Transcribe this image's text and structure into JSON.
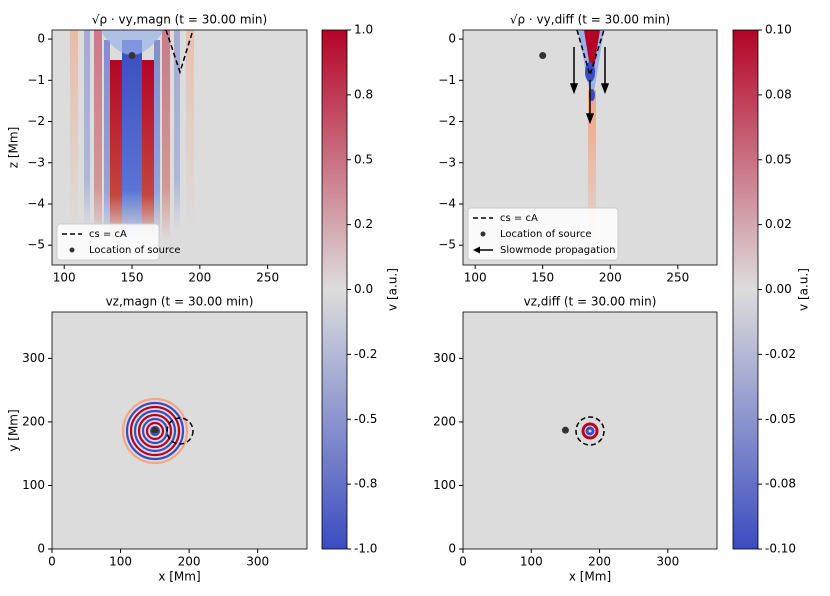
{
  "chart_data": [
    {
      "type": "heatmap",
      "title": "√ρ · vy,magn (t = 30.00 min)",
      "ylabel": "z [Mm]",
      "xlim": [
        91,
        279
      ],
      "ylim": [
        -5.48,
        0.22
      ],
      "xticks": [
        100,
        150,
        200,
        250
      ],
      "yticks": [
        {
          "value": -5,
          "label": "−5"
        },
        {
          "value": -4,
          "label": "−4"
        },
        {
          "value": -3,
          "label": "−3"
        },
        {
          "value": -2,
          "label": "−2"
        },
        {
          "value": -1,
          "label": "−1"
        },
        0
      ],
      "contour": {
        "name": "cs = cA"
      },
      "series": [
        {
          "name": "Location of source",
          "color": "#333333",
          "x": [
            150
          ],
          "y": [
            -0.4
          ]
        }
      ],
      "legend": "lower left"
    },
    {
      "type": "heatmap",
      "title": "√ρ · vy,diff (t = 30.00 min)",
      "xlim": [
        91,
        279
      ],
      "ylim": [
        -5.48,
        0.22
      ],
      "xticks": [
        100,
        150,
        200,
        250
      ],
      "yticks": [
        {
          "value": -5,
          "label": "−5"
        },
        {
          "value": -4,
          "label": "−4"
        },
        {
          "value": -3,
          "label": "−3"
        },
        {
          "value": -2,
          "label": "−2"
        },
        {
          "value": -1,
          "label": "−1"
        },
        0
      ],
      "contour": {
        "name": "cs = cA"
      },
      "series": [
        {
          "name": "Location of source",
          "color": "#333333",
          "x": [
            150
          ],
          "y": [
            -0.4
          ]
        }
      ],
      "arrows": {
        "name": "Slowmode propagation"
      },
      "legend": "lower left"
    },
    {
      "type": "heatmap",
      "title": "vz,magn (t = 30.00 min)",
      "xlabel": "x [Mm]",
      "ylabel": "y [Mm]",
      "xlim": [
        0,
        372
      ],
      "ylim": [
        0,
        373
      ],
      "xticks": [
        0,
        100,
        200,
        300
      ],
      "yticks": [
        0,
        100,
        200,
        300
      ],
      "series": [
        {
          "name": "Location of source",
          "color": "#333333",
          "x": [
            150
          ],
          "y": [
            187
          ]
        }
      ]
    },
    {
      "type": "heatmap",
      "title": "vz,diff (t = 30.00 min)",
      "xlabel": "x [Mm]",
      "xlim": [
        0,
        372
      ],
      "ylim": [
        0,
        373
      ],
      "xticks": [
        0,
        100,
        200,
        300
      ],
      "yticks": [
        0,
        100,
        200,
        300
      ],
      "series": [
        {
          "name": "Location of source",
          "color": "#333333",
          "x": [
            150
          ],
          "y": [
            187
          ]
        }
      ]
    },
    {
      "type": "colorbar",
      "label": "v [a.u.]",
      "ylim": [
        -1,
        1
      ],
      "colors": [
        "#3b4cc0",
        "#dddddd",
        "#b40426"
      ],
      "yticks": [
        {
          "value": -1,
          "label": "-1.0"
        },
        {
          "value": -0.75,
          "label": "-0.8"
        },
        {
          "value": -0.5,
          "label": "-0.5"
        },
        {
          "value": -0.25,
          "label": "-0.2"
        },
        {
          "value": 0,
          "label": "0.0"
        },
        {
          "value": 0.25,
          "label": "0.2"
        },
        {
          "value": 0.5,
          "label": "0.5"
        },
        {
          "value": 0.75,
          "label": "0.8"
        },
        {
          "value": 1,
          "label": "1.0"
        }
      ]
    },
    {
      "type": "colorbar",
      "label": "v [a.u.]",
      "ylim": [
        -0.1,
        0.1
      ],
      "colors": [
        "#3b4cc0",
        "#dddddd",
        "#b40426"
      ],
      "yticks": [
        {
          "value": -0.1,
          "label": "-0.10"
        },
        {
          "value": -0.075,
          "label": "-0.08"
        },
        {
          "value": -0.05,
          "label": "-0.05"
        },
        {
          "value": -0.025,
          "label": "-0.02"
        },
        {
          "value": 0,
          "label": "0.00"
        },
        {
          "value": 0.025,
          "label": "0.02"
        },
        {
          "value": 0.05,
          "label": "0.05"
        },
        {
          "value": 0.075,
          "label": "0.08"
        },
        {
          "value": 0.1,
          "label": "0.10"
        }
      ]
    }
  ]
}
